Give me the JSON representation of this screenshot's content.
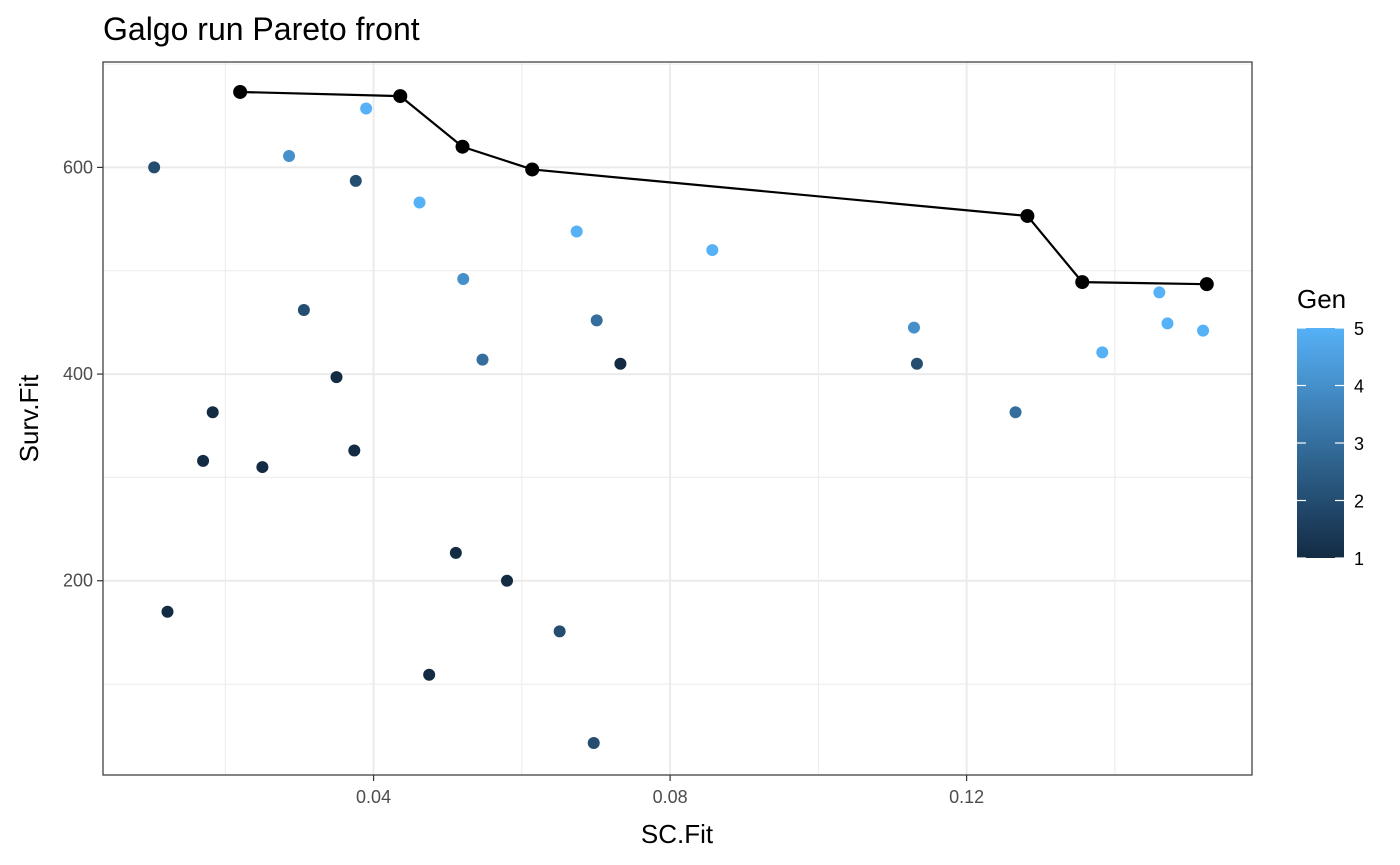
{
  "chart_data": {
    "type": "scatter",
    "title": "Galgo run Pareto front",
    "xlabel": "SC.Fit",
    "ylabel": "Surv.Fit",
    "xlim": [
      0.0035,
      0.1585
    ],
    "ylim": [
      12,
      702
    ],
    "x_ticks": [
      0.04,
      0.08,
      0.12
    ],
    "x_tick_labels": [
      "0.04",
      "0.08",
      "0.12"
    ],
    "y_ticks": [
      200,
      400,
      600
    ],
    "y_tick_labels": [
      "200",
      "400",
      "600"
    ],
    "grid": true,
    "legend": {
      "title": "Gen",
      "placement": "right",
      "min": 1,
      "max": 5,
      "ticks": [
        1,
        2,
        3,
        4,
        5
      ],
      "tick_labels": [
        "1",
        "2",
        "3",
        "4",
        "5"
      ],
      "color_low": "#132B43",
      "color_high": "#56B1F7"
    },
    "points": [
      {
        "x": 0.0104,
        "y": 600,
        "gen": 2
      },
      {
        "x": 0.0122,
        "y": 170,
        "gen": 1
      },
      {
        "x": 0.017,
        "y": 316,
        "gen": 1
      },
      {
        "x": 0.0183,
        "y": 363,
        "gen": 1
      },
      {
        "x": 0.025,
        "y": 310,
        "gen": 1
      },
      {
        "x": 0.0286,
        "y": 611,
        "gen": 4
      },
      {
        "x": 0.0306,
        "y": 462,
        "gen": 2
      },
      {
        "x": 0.035,
        "y": 397,
        "gen": 1
      },
      {
        "x": 0.0374,
        "y": 326,
        "gen": 1
      },
      {
        "x": 0.0376,
        "y": 587,
        "gen": 2
      },
      {
        "x": 0.039,
        "y": 657,
        "gen": 5
      },
      {
        "x": 0.0462,
        "y": 566,
        "gen": 5
      },
      {
        "x": 0.0475,
        "y": 109,
        "gen": 1
      },
      {
        "x": 0.0511,
        "y": 227,
        "gen": 1
      },
      {
        "x": 0.0521,
        "y": 492,
        "gen": 4
      },
      {
        "x": 0.0547,
        "y": 414,
        "gen": 3
      },
      {
        "x": 0.058,
        "y": 200,
        "gen": 1
      },
      {
        "x": 0.0651,
        "y": 151,
        "gen": 2
      },
      {
        "x": 0.0674,
        "y": 538,
        "gen": 5
      },
      {
        "x": 0.0697,
        "y": 43,
        "gen": 2
      },
      {
        "x": 0.0701,
        "y": 452,
        "gen": 3
      },
      {
        "x": 0.0733,
        "y": 410,
        "gen": 1
      },
      {
        "x": 0.0857,
        "y": 520,
        "gen": 5
      },
      {
        "x": 0.1129,
        "y": 445,
        "gen": 4
      },
      {
        "x": 0.1133,
        "y": 410,
        "gen": 2
      },
      {
        "x": 0.1266,
        "y": 363,
        "gen": 3
      },
      {
        "x": 0.1383,
        "y": 421,
        "gen": 5
      },
      {
        "x": 0.146,
        "y": 479,
        "gen": 5
      },
      {
        "x": 0.1471,
        "y": 449,
        "gen": 5
      },
      {
        "x": 0.1519,
        "y": 442,
        "gen": 5
      }
    ],
    "pareto_front": {
      "color": "#000000",
      "points": [
        {
          "x": 0.022,
          "y": 673
        },
        {
          "x": 0.0436,
          "y": 669
        },
        {
          "x": 0.052,
          "y": 620
        },
        {
          "x": 0.0614,
          "y": 598
        },
        {
          "x": 0.1282,
          "y": 553
        },
        {
          "x": 0.1356,
          "y": 489
        },
        {
          "x": 0.1524,
          "y": 487
        }
      ]
    }
  }
}
